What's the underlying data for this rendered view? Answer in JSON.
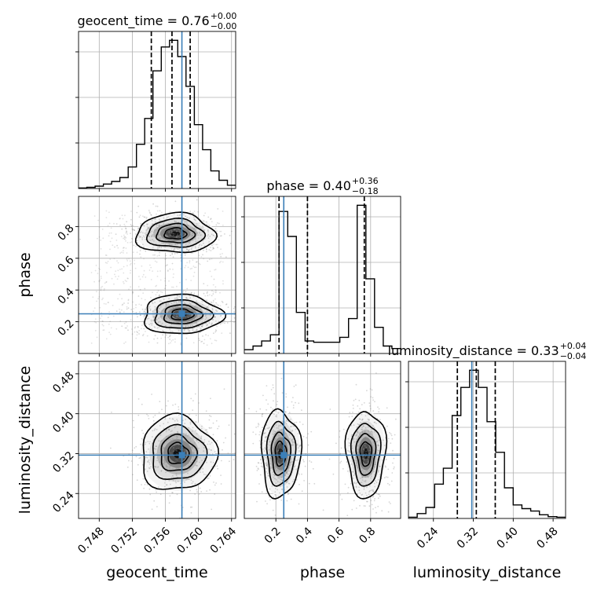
{
  "chart_data": {
    "type": "corner",
    "parameters": [
      "geocent_time",
      "phase",
      "luminosity_distance"
    ],
    "truths": {
      "geocent_time": 0.758,
      "phase": 0.25,
      "luminosity_distance": 0.317
    },
    "ranges": {
      "geocent_time": [
        0.7455,
        0.7645
      ],
      "phase": [
        0.0,
        0.99
      ],
      "luminosity_distance": [
        0.19,
        0.505
      ]
    },
    "ticks": {
      "geocent_time": [
        0.748,
        0.752,
        0.756,
        0.76,
        0.764
      ],
      "phase": [
        0.2,
        0.4,
        0.6,
        0.8
      ],
      "luminosity_distance": [
        0.24,
        0.32,
        0.4,
        0.48
      ]
    },
    "tick_labels": {
      "geocent_time": [
        "0.748",
        "0.752",
        "0.756",
        "0.760",
        "0.764"
      ],
      "phase": [
        "0.2",
        "0.4",
        "0.6",
        "0.8"
      ],
      "luminosity_distance": [
        "0.24",
        "0.32",
        "0.40",
        "0.48"
      ]
    },
    "titles": [
      {
        "param": "geocent_time",
        "label": "geocent_time = 0.76",
        "plus": "+0.00",
        "minus": "−0.00",
        "median": 0.7568,
        "lower": 0.7543,
        "upper": 0.759
      },
      {
        "param": "phase",
        "label": "phase = 0.40",
        "plus": "+0.36",
        "minus": "−0.18",
        "median": 0.4,
        "lower": 0.22,
        "upper": 0.76
      },
      {
        "param": "luminosity_distance",
        "label": "luminosity_distance = 0.33",
        "plus": "+0.04",
        "minus": "−0.04",
        "median": 0.326,
        "lower": 0.288,
        "upper": 0.364
      }
    ],
    "histograms": {
      "geocent_time": {
        "bins": [
          0.7455,
          0.7465,
          0.7475,
          0.7485,
          0.7495,
          0.7505,
          0.7515,
          0.7525,
          0.7535,
          0.7545,
          0.7555,
          0.7565,
          0.7575,
          0.7585,
          0.7595,
          0.7605,
          0.7615,
          0.7625,
          0.7635,
          0.7645
        ],
        "counts": [
          0.3,
          0.6,
          1.2,
          2.3,
          3.6,
          5.6,
          11.0,
          22.6,
          35.8,
          60.1,
          72.3,
          75.7,
          67.4,
          52.2,
          32.6,
          19.8,
          9.0,
          4.2,
          1.7
        ]
      },
      "phase": {
        "bins": [
          0.0,
          0.055,
          0.11,
          0.165,
          0.22,
          0.275,
          0.33,
          0.385,
          0.44,
          0.495,
          0.55,
          0.605,
          0.66,
          0.715,
          0.77,
          0.825,
          0.88,
          0.935,
          0.99
        ],
        "counts": [
          3,
          6,
          10,
          15,
          114,
          94,
          33,
          10,
          9,
          9,
          9,
          13,
          28,
          119,
          60,
          21,
          6,
          4
        ]
      },
      "luminosity_distance": {
        "bins": [
          0.19,
          0.2075,
          0.225,
          0.2425,
          0.26,
          0.2775,
          0.295,
          0.3125,
          0.33,
          0.3475,
          0.365,
          0.3825,
          0.4,
          0.4175,
          0.435,
          0.4525,
          0.47,
          0.4875,
          0.505
        ],
        "counts": [
          1,
          4,
          9,
          28,
          41,
          84,
          107,
          121,
          107,
          79,
          54,
          25,
          11,
          8,
          6,
          3,
          1.5,
          1
        ]
      }
    },
    "density_2d": [
      {
        "x": "geocent_time",
        "y": "phase",
        "peaks": [
          {
            "x": 0.7572,
            "y": 0.755
          },
          {
            "x": 0.758,
            "y": 0.245
          }
        ]
      },
      {
        "x": "geocent_time",
        "y": "luminosity_distance",
        "peaks": [
          {
            "x": 0.7575,
            "y": 0.32
          }
        ]
      },
      {
        "x": "phase",
        "y": "luminosity_distance",
        "peaks": [
          {
            "x": 0.23,
            "y": 0.32
          },
          {
            "x": 0.77,
            "y": 0.32
          }
        ]
      }
    ],
    "colors": {
      "truth": "#3b7fb8",
      "hist": "#000000",
      "grid": "#b0b0b0"
    },
    "grid": true
  }
}
